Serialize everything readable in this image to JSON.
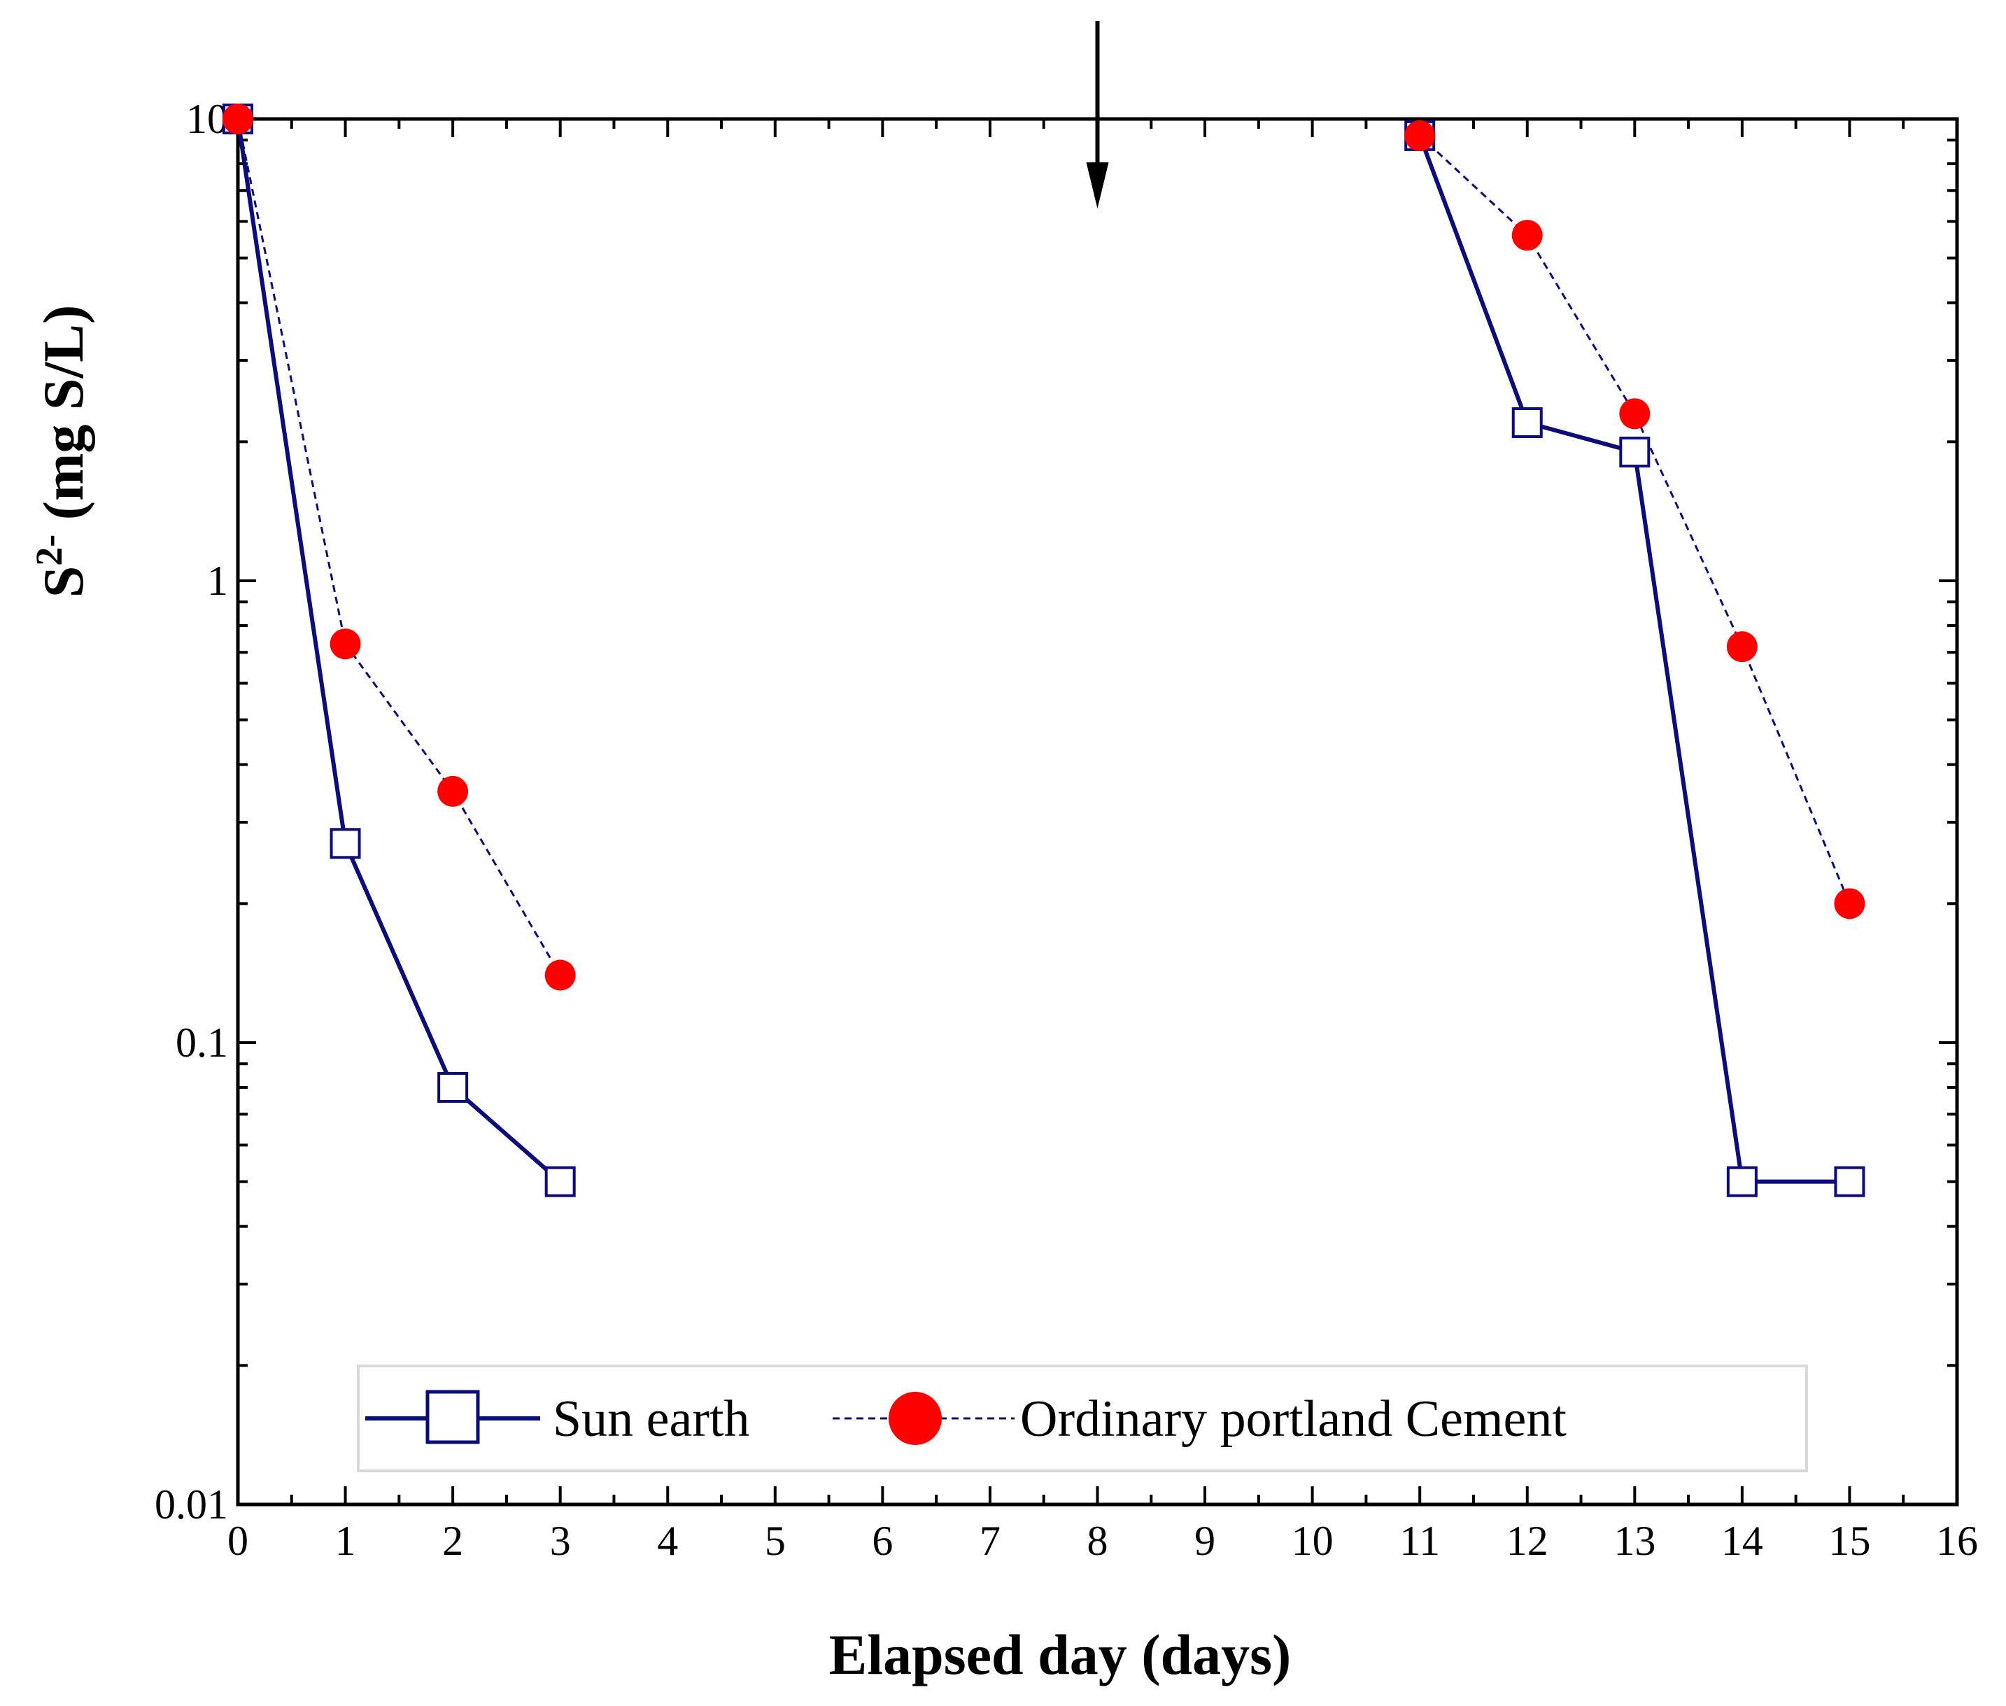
{
  "chart_data": {
    "type": "line",
    "title": "",
    "xlabel": "Elapsed day (days)",
    "ylabel": {
      "base": "S",
      "superscript": "2-",
      "rest": " (mg S/L)"
    },
    "xlim": [
      0,
      16
    ],
    "ylim": [
      0.01,
      10
    ],
    "yscale": "log",
    "xticks": [
      "0",
      "1",
      "2",
      "3",
      "4",
      "5",
      "6",
      "7",
      "8",
      "9",
      "10",
      "11",
      "12",
      "13",
      "14",
      "15",
      "16"
    ],
    "yticks": [
      {
        "value": 0.01,
        "label": "0.01"
      },
      {
        "value": 0.1,
        "label": "0.1"
      },
      {
        "value": 1,
        "label": "1"
      },
      {
        "value": 10,
        "label": "10"
      }
    ],
    "annotation": {
      "type": "arrow",
      "x": 8,
      "direction": "down"
    },
    "legend_position": "bottom",
    "series": [
      {
        "name": "Sun earth",
        "color": "#0d0d7a",
        "marker": "open-square",
        "line": "solid",
        "segments": [
          {
            "x": [
              0,
              1,
              2,
              3
            ],
            "y": [
              10,
              0.27,
              0.08,
              0.05
            ]
          },
          {
            "x": [
              11,
              12,
              13,
              14,
              15
            ],
            "y": [
              9.2,
              2.2,
              1.9,
              0.05,
              0.05
            ]
          }
        ]
      },
      {
        "name": "Ordinary portland Cement",
        "color": "#ff0000",
        "line_color": "#0d0d7a",
        "marker": "filled-circle",
        "line": "dashed",
        "segments": [
          {
            "x": [
              0,
              1,
              2,
              3
            ],
            "y": [
              10,
              0.73,
              0.35,
              0.14
            ]
          },
          {
            "x": [
              11,
              12,
              13,
              14,
              15
            ],
            "y": [
              9.2,
              5.6,
              2.3,
              0.72,
              0.2
            ]
          }
        ]
      }
    ]
  }
}
